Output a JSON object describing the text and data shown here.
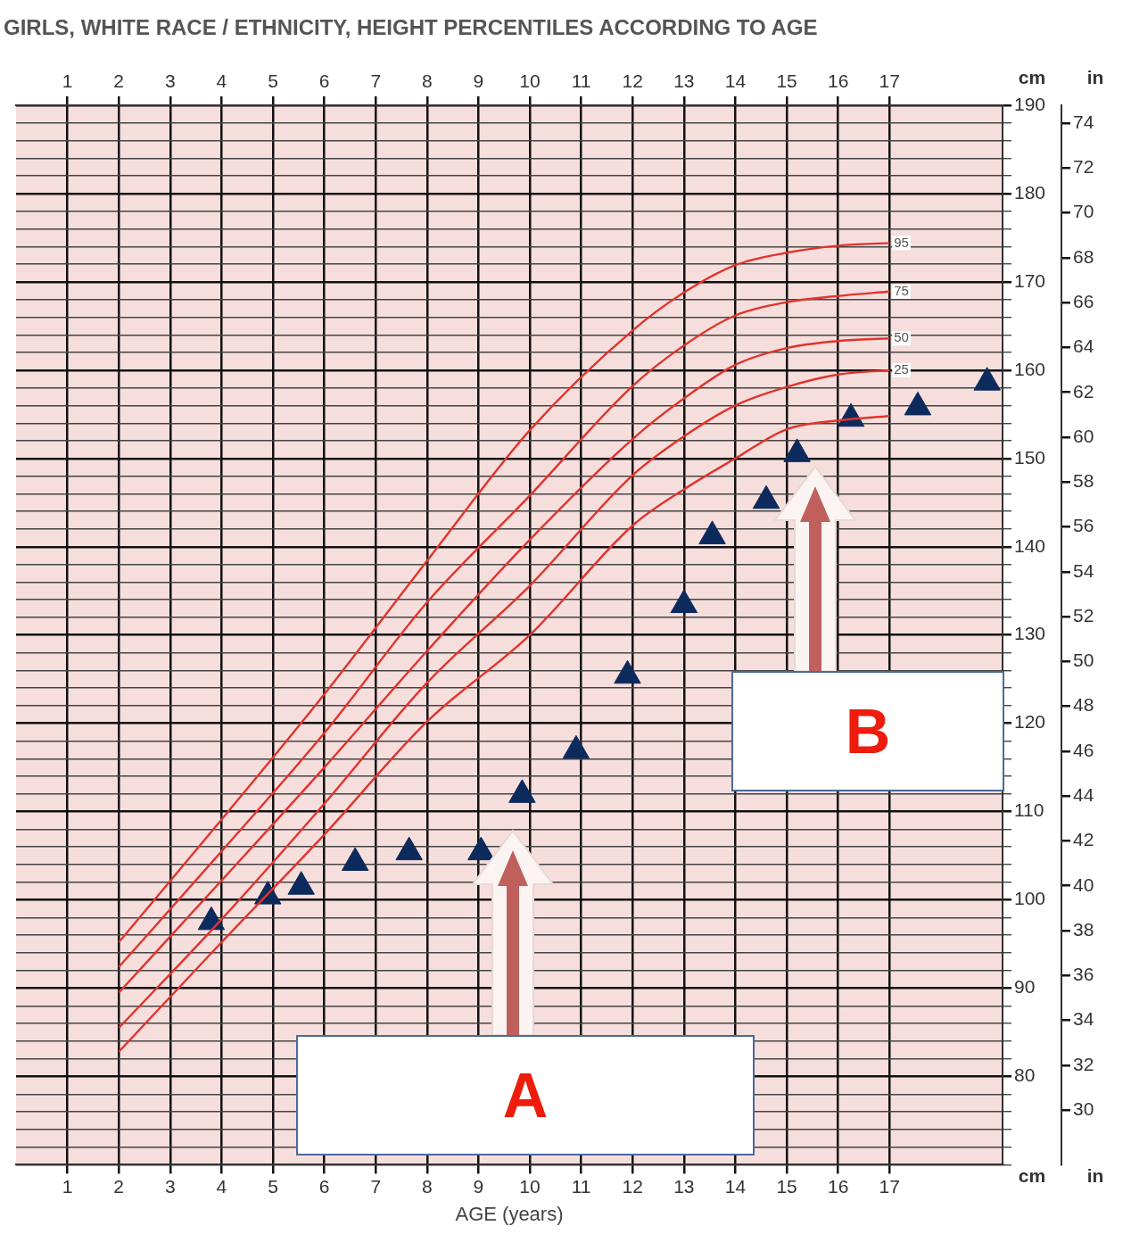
{
  "chart_data": {
    "type": "line",
    "title": "GIRLS, WHITE RACE / ETHNICITY, HEIGHT PERCENTILES ACCORDING TO AGE",
    "xlabel": "AGE (years)",
    "ylabel": "cm",
    "y2label": "in",
    "xlim": [
      0,
      19.2
    ],
    "xticks": [
      1,
      2,
      3,
      4,
      5,
      6,
      7,
      8,
      9,
      10,
      11,
      12,
      13,
      14,
      15,
      16,
      17
    ],
    "x2lim": [
      0,
      19.2
    ],
    "x2ticks": [
      1,
      2,
      3,
      4,
      5,
      6,
      7,
      8,
      9,
      10,
      11,
      12,
      13,
      14,
      15,
      16,
      17
    ],
    "ylim": [
      70,
      190
    ],
    "yticks": [
      {
        "value": 70,
        "label": null
      },
      {
        "value": 72,
        "label": null
      },
      {
        "value": 74,
        "label": null
      },
      {
        "value": 76,
        "label": null
      },
      {
        "value": 78,
        "label": null
      },
      80,
      {
        "value": 82,
        "label": null
      },
      {
        "value": 84,
        "label": null
      },
      {
        "value": 86,
        "label": null
      },
      {
        "value": 88,
        "label": null
      },
      90,
      {
        "value": 92,
        "label": null
      },
      {
        "value": 94,
        "label": null
      },
      {
        "value": 96,
        "label": null
      },
      {
        "value": 98,
        "label": null
      },
      100,
      {
        "value": 102,
        "label": null
      },
      {
        "value": 104,
        "label": null
      },
      {
        "value": 106,
        "label": null
      },
      {
        "value": 108,
        "label": null
      },
      110,
      {
        "value": 112,
        "label": null
      },
      {
        "value": 114,
        "label": null
      },
      {
        "value": 116,
        "label": null
      },
      {
        "value": 118,
        "label": null
      },
      120,
      {
        "value": 122,
        "label": null
      },
      {
        "value": 124,
        "label": null
      },
      {
        "value": 126,
        "label": null
      },
      {
        "value": 128,
        "label": null
      },
      130,
      {
        "value": 132,
        "label": null
      },
      {
        "value": 134,
        "label": null
      },
      {
        "value": 136,
        "label": null
      },
      {
        "value": 138,
        "label": null
      },
      140,
      {
        "value": 142,
        "label": null
      },
      {
        "value": 144,
        "label": null
      },
      {
        "value": 146,
        "label": null
      },
      {
        "value": 148,
        "label": null
      },
      150,
      {
        "value": 152,
        "label": null
      },
      {
        "value": 154,
        "label": null
      },
      {
        "value": 156,
        "label": null
      },
      {
        "value": 158,
        "label": null
      },
      160,
      {
        "value": 162,
        "label": null
      },
      {
        "value": 164,
        "label": null
      },
      {
        "value": 166,
        "label": null
      },
      {
        "value": 168,
        "label": null
      },
      170,
      {
        "value": 172,
        "label": null
      },
      {
        "value": 174,
        "label": null
      },
      {
        "value": 176,
        "label": null
      },
      {
        "value": 178,
        "label": null
      },
      180,
      {
        "value": 182,
        "label": null
      },
      {
        "value": 184,
        "label": null
      },
      {
        "value": 186,
        "label": null
      },
      {
        "value": 188,
        "label": null
      },
      190
    ],
    "y2lim": [
      27.56,
      74.8
    ],
    "y2ticks": [
      30,
      32,
      34,
      36,
      38,
      40,
      42,
      44,
      46,
      48,
      50,
      52,
      54,
      56,
      58,
      60,
      62,
      64,
      66,
      68,
      70,
      72,
      74
    ],
    "grid": true,
    "legend": false,
    "series": [
      {
        "name": "95",
        "color": "#e0342c",
        "x": [
          2,
          4,
          6,
          8,
          10,
          12,
          13,
          14,
          15,
          16,
          17
        ],
        "values": [
          95.2,
          109.1,
          123.3,
          138.4,
          153.2,
          164.5,
          168.8,
          171.9,
          173.3,
          174.1,
          174.4
        ]
      },
      {
        "name": "75",
        "color": "#e0342c",
        "x": [
          2,
          4,
          6,
          8,
          10,
          12,
          13,
          14,
          15,
          16,
          17
        ],
        "values": [
          92.4,
          105.5,
          118.9,
          133.7,
          145.8,
          158.2,
          162.8,
          166.2,
          167.7,
          168.4,
          168.9
        ]
      },
      {
        "name": "50",
        "color": "#e0342c",
        "x": [
          2,
          4,
          6,
          8,
          10,
          12,
          13,
          14,
          15,
          16,
          17
        ],
        "values": [
          89.5,
          102.2,
          115.0,
          128.2,
          140.8,
          152.2,
          156.8,
          160.6,
          162.5,
          163.3,
          163.6
        ]
      },
      {
        "name": "25",
        "color": "#e0342c",
        "x": [
          2,
          4,
          6,
          8,
          10,
          12,
          13,
          14,
          15,
          16,
          17
        ],
        "values": [
          85.5,
          97.8,
          110.9,
          124.6,
          135.6,
          148.1,
          152.5,
          156.0,
          158.1,
          159.5,
          160.0
        ]
      },
      {
        "color": "#e0342c",
        "x": [
          2,
          4,
          6,
          8,
          10,
          12,
          13,
          14,
          15,
          16,
          17
        ],
        "values": [
          82.8,
          95.2,
          107.4,
          120.2,
          130.0,
          142.4,
          146.5,
          150.0,
          153.3,
          154.3,
          154.8
        ]
      },
      {
        "type": "scatter",
        "marker": "triangle",
        "color": "#0d2a5c",
        "x": [
          3.8,
          4.9,
          5.55,
          6.6,
          7.65,
          9.05,
          9.85,
          10.9,
          11.9,
          13.0,
          13.55,
          14.6,
          15.2,
          16.25,
          17.55,
          18.9
        ],
        "values": [
          97.5,
          100.4,
          101.5,
          104.2,
          105.4,
          105.4,
          111.9,
          116.9,
          125.4,
          133.4,
          141.2,
          145.2,
          150.5,
          154.5,
          155.8,
          158.6
        ]
      }
    ],
    "annotations": [
      "A",
      "B"
    ]
  }
}
